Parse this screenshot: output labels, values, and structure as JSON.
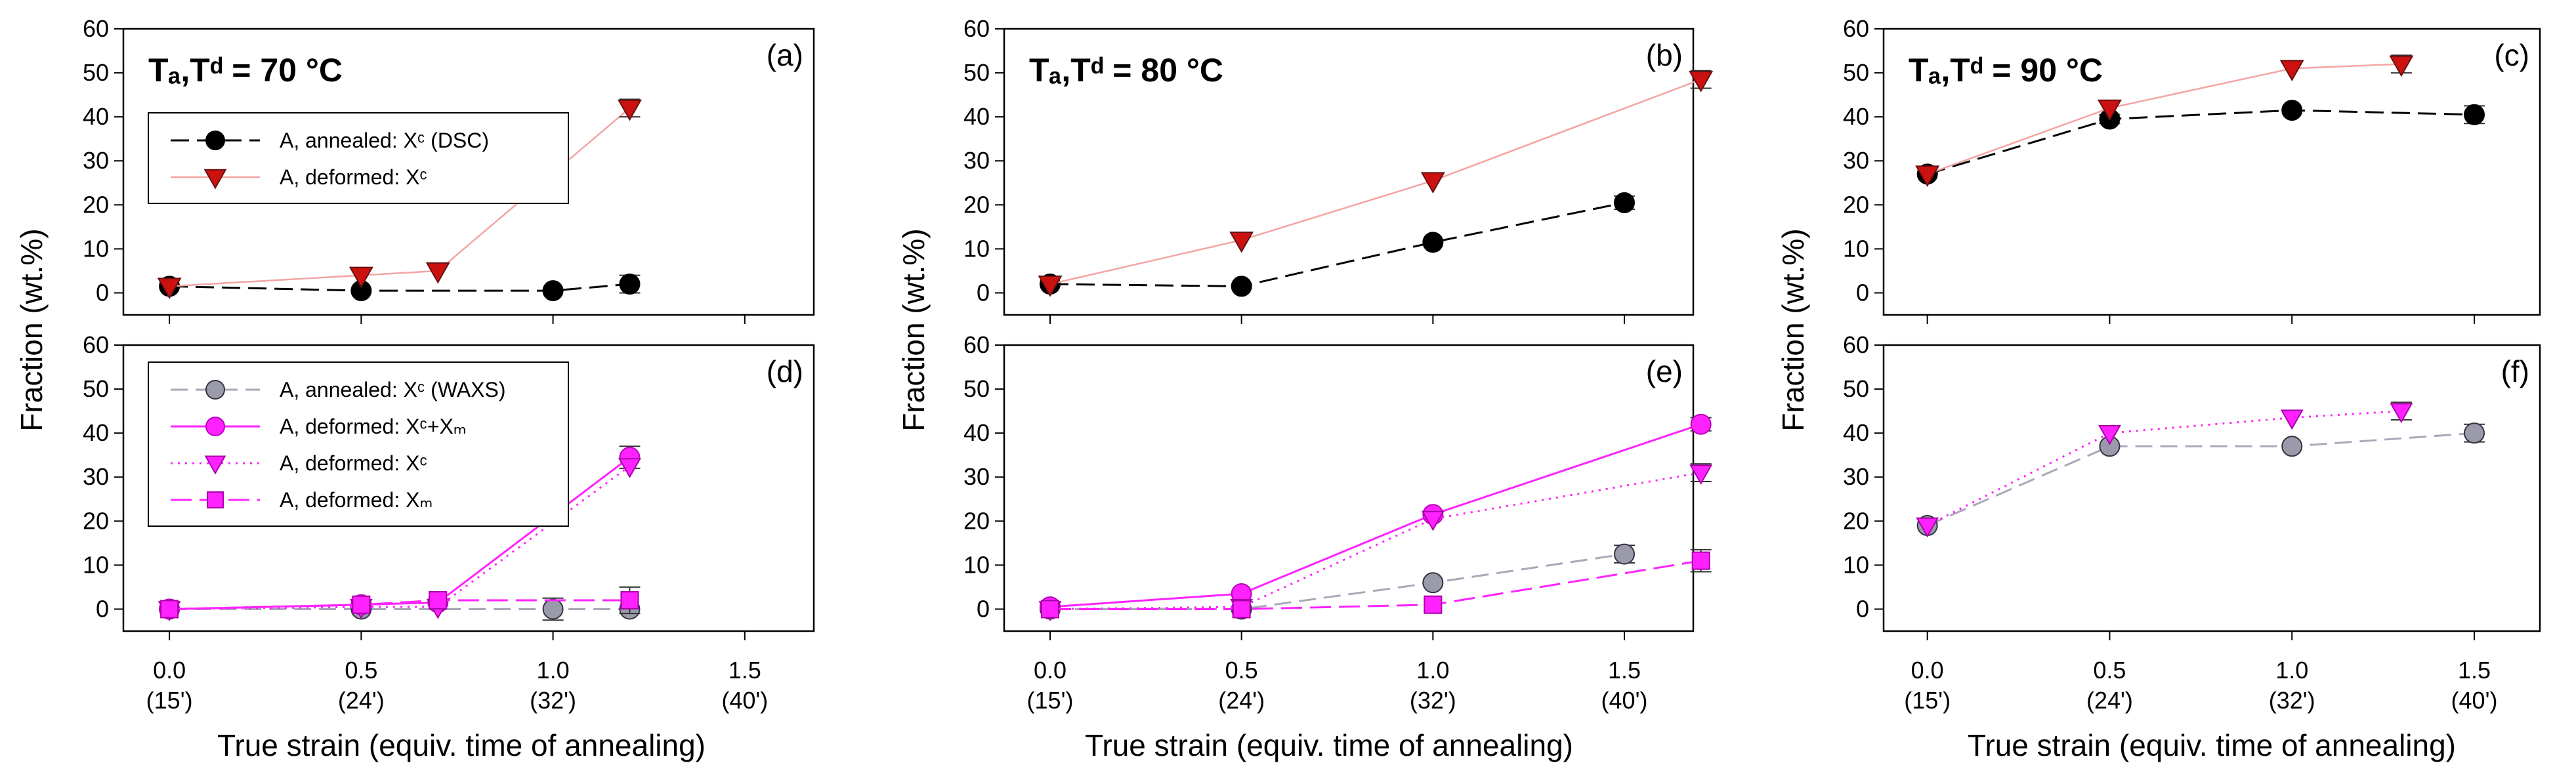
{
  "chart_data": {
    "type": "line",
    "xlabel": "True strain (equiv. time of annealing)",
    "ylabel": "Fraction (wt.%)",
    "x_ticks": [
      {
        "value": 0.0,
        "label": "0.0",
        "time": "(15')"
      },
      {
        "value": 0.5,
        "label": "0.5",
        "time": "(24')"
      },
      {
        "value": 1.0,
        "label": "1.0",
        "time": "(32')"
      },
      {
        "value": 1.5,
        "label": "1.5",
        "time": "(40')"
      }
    ],
    "y_ticks": [
      0,
      10,
      20,
      30,
      40,
      50,
      60
    ],
    "xlim": [
      -0.12,
      1.68
    ],
    "ylim": [
      -5,
      60
    ],
    "columns": [
      {
        "title": "Tₐ,Tᵈ = 70 °C"
      },
      {
        "title": "Tₐ,Tᵈ = 80 °C"
      },
      {
        "title": "Tₐ,Tᵈ = 90 °C"
      }
    ],
    "panels": [
      {
        "id": "a",
        "label": "(a)",
        "row": 0,
        "col": 0,
        "legend": [
          "A, annealed: Xᶜ (DSC)",
          "A, deformed:  Xᶜ"
        ],
        "series": [
          {
            "name": "A, annealed: Xc (DSC)",
            "style": "dsc",
            "x": [
              0.0,
              0.5,
              1.0,
              1.2
            ],
            "y": [
              1.5,
              0.5,
              0.5,
              2.0
            ],
            "err": [
              0,
              0,
              0,
              2.0
            ]
          },
          {
            "name": "A, deformed: Xc",
            "style": "defXcRed",
            "x": [
              0.0,
              0.5,
              0.7,
              1.2
            ],
            "y": [
              1.5,
              4.0,
              5.0,
              42.0
            ],
            "err": [
              0,
              0,
              0,
              2.0
            ]
          }
        ]
      },
      {
        "id": "b",
        "label": "(b)",
        "row": 0,
        "col": 1,
        "series": [
          {
            "name": "A, annealed: Xc (DSC)",
            "style": "dsc",
            "x": [
              0.0,
              0.5,
              1.0,
              1.5
            ],
            "y": [
              2.0,
              1.5,
              11.5,
              20.5
            ],
            "err": [
              0,
              0,
              0,
              1.5
            ]
          },
          {
            "name": "A, deformed: Xc",
            "style": "defXcRed",
            "x": [
              0.0,
              0.5,
              1.0,
              1.7
            ],
            "y": [
              2.0,
              12.0,
              25.5,
              48.5
            ],
            "err": [
              0,
              0,
              0,
              2.0
            ]
          }
        ]
      },
      {
        "id": "c",
        "label": "(c)",
        "row": 0,
        "col": 2,
        "series": [
          {
            "name": "A, annealed: Xc (DSC)",
            "style": "dsc",
            "x": [
              0.0,
              0.5,
              1.0,
              1.5
            ],
            "y": [
              27.0,
              39.5,
              41.5,
              40.5
            ],
            "err": [
              0,
              1.0,
              0,
              2.0
            ]
          },
          {
            "name": "A, deformed: Xc",
            "style": "defXcRed",
            "x": [
              0.0,
              0.5,
              1.0,
              1.3
            ],
            "y": [
              27.0,
              42.0,
              51.0,
              52.0
            ],
            "err": [
              0,
              0,
              0,
              2.0
            ]
          }
        ]
      },
      {
        "id": "d",
        "label": "(d)",
        "row": 1,
        "col": 0,
        "legend": [
          "A, annealed: Xᶜ (WAXS)",
          "A, deformed: Xᶜ+Xₘ",
          "A, deformed: Xᶜ",
          "A, deformed: Xₘ"
        ],
        "series": [
          {
            "name": "A, annealed: Xc (WAXS)",
            "style": "waxs",
            "x": [
              0.0,
              0.5,
              1.0,
              1.2
            ],
            "y": [
              0.0,
              0.0,
              0.0,
              0.0
            ],
            "err": [
              0,
              0,
              2.5,
              0
            ]
          },
          {
            "name": "A, deformed: Xc+Xm",
            "style": "defSum",
            "x": [
              0.0,
              0.5,
              0.7,
              1.2
            ],
            "y": [
              0.0,
              1.0,
              1.5,
              34.5
            ],
            "err": [
              0,
              0,
              0,
              2.5
            ]
          },
          {
            "name": "A, deformed: Xc",
            "style": "defXcMag",
            "x": [
              0.0,
              0.5,
              0.7,
              1.2
            ],
            "y": [
              0.0,
              0.5,
              0.5,
              32.5
            ],
            "err": [
              0,
              0,
              0,
              0
            ]
          },
          {
            "name": "A, deformed: Xm",
            "style": "defXm",
            "x": [
              0.0,
              0.5,
              0.7,
              1.2
            ],
            "y": [
              0.0,
              1.0,
              2.0,
              2.0
            ],
            "err": [
              0,
              0,
              0,
              3.0
            ]
          }
        ]
      },
      {
        "id": "e",
        "label": "(e)",
        "row": 1,
        "col": 1,
        "series": [
          {
            "name": "A, annealed: Xc (WAXS)",
            "style": "waxs",
            "x": [
              0.0,
              0.5,
              1.0,
              1.5
            ],
            "y": [
              0.0,
              0.0,
              6.0,
              12.5
            ],
            "err": [
              0,
              0,
              0,
              2.0
            ]
          },
          {
            "name": "A, deformed: Xc+Xm",
            "style": "defSum",
            "x": [
              0.0,
              0.5,
              1.0,
              1.7
            ],
            "y": [
              0.5,
              3.5,
              21.5,
              42.0
            ],
            "err": [
              0,
              0,
              0,
              1.5
            ]
          },
          {
            "name": "A, deformed: Xc",
            "style": "defXcMag",
            "x": [
              0.0,
              0.5,
              1.0,
              1.7
            ],
            "y": [
              0.0,
              0.5,
              20.5,
              31.0
            ],
            "err": [
              0,
              0,
              0,
              2.0
            ]
          },
          {
            "name": "A, deformed: Xm",
            "style": "defXm",
            "x": [
              0.0,
              0.5,
              1.0,
              1.7
            ],
            "y": [
              0.0,
              0.0,
              1.0,
              11.0
            ],
            "err": [
              0,
              0,
              0,
              2.5
            ]
          }
        ]
      },
      {
        "id": "f",
        "label": "(f)",
        "row": 1,
        "col": 2,
        "series": [
          {
            "name": "A, annealed: Xc (WAXS)",
            "style": "waxs",
            "x": [
              0.0,
              0.5,
              1.0,
              1.5
            ],
            "y": [
              19.0,
              37.0,
              37.0,
              40.0
            ],
            "err": [
              0,
              0,
              0,
              2.0
            ]
          },
          {
            "name": "A, deformed: Xc",
            "style": "defXcMag",
            "x": [
              0.0,
              0.5,
              1.0,
              1.3
            ],
            "y": [
              19.0,
              40.0,
              43.5,
              45.0
            ],
            "err": [
              0,
              0,
              0,
              2.0
            ]
          }
        ]
      }
    ]
  }
}
